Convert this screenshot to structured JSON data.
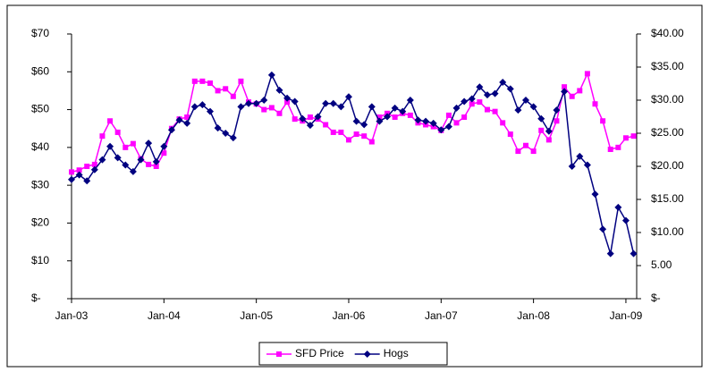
{
  "chart_data": {
    "type": "line",
    "categories": [
      "Jan-03",
      null,
      null,
      null,
      null,
      null,
      null,
      null,
      null,
      null,
      null,
      null,
      "Jan-04",
      null,
      null,
      null,
      null,
      null,
      null,
      null,
      null,
      null,
      null,
      null,
      "Jan-05",
      null,
      null,
      null,
      null,
      null,
      null,
      null,
      null,
      null,
      null,
      null,
      "Jan-06",
      null,
      null,
      null,
      null,
      null,
      null,
      null,
      null,
      null,
      null,
      null,
      "Jan-07",
      null,
      null,
      null,
      null,
      null,
      null,
      null,
      null,
      null,
      null,
      null,
      "Jan-08",
      null,
      null,
      null,
      null,
      null,
      null,
      null,
      null,
      null,
      null,
      null,
      "Jan-09",
      null
    ],
    "series": [
      {
        "name": "SFD Price",
        "color": "#ff00ff",
        "marker": "square",
        "values": [
          33.5,
          34,
          35,
          35.5,
          43,
          47,
          44,
          40,
          41,
          37,
          35.5,
          35,
          38.5,
          45,
          47.5,
          48,
          57.5,
          57.5,
          57,
          55,
          55.5,
          53.5,
          57.5,
          52,
          51.5,
          50,
          50.5,
          49,
          52,
          47.5,
          47,
          48,
          47.5,
          46,
          44,
          44,
          42,
          43.5,
          43,
          41.5,
          48,
          49,
          48,
          49,
          48.5,
          46.5,
          46,
          45.5,
          44.5,
          48.5,
          46.5,
          48,
          51.5,
          52,
          50,
          49.5,
          46.5,
          43.5,
          39,
          40.5,
          39,
          44.5,
          42,
          47,
          56,
          53.5,
          55,
          59.5,
          51.5,
          47,
          39.5,
          40,
          42.5,
          43
        ]
      },
      {
        "name": "Hogs",
        "color": "#000080",
        "marker": "diamond",
        "axis": "y2",
        "values": [
          18,
          18.7,
          17.8,
          19.5,
          21,
          23,
          21.3,
          20.2,
          19.2,
          21,
          23.5,
          20.7,
          23,
          25.5,
          27,
          26.5,
          29,
          29.3,
          28.3,
          25.8,
          25,
          24.3,
          29,
          29.5,
          29.5,
          30,
          33.8,
          31.5,
          30.3,
          29.8,
          27.2,
          26.2,
          27.5,
          29.5,
          29.5,
          29,
          30.5,
          26.8,
          26.3,
          29,
          26.8,
          27.5,
          28.8,
          28.3,
          30,
          27,
          26.8,
          26.5,
          25.5,
          26,
          28.8,
          29.8,
          30.2,
          32,
          30.8,
          31,
          32.7,
          31.7,
          28.5,
          30,
          29,
          27.2,
          25.3,
          28.5,
          31.3,
          20,
          21.5,
          20.2,
          15.8,
          10.5,
          6.8,
          13.8,
          11.8,
          6.8
        ]
      }
    ],
    "ylim": [
      0,
      70
    ],
    "yticks": [
      {
        "value": 0,
        "label": "$-"
      },
      {
        "value": 10,
        "label": "$10"
      },
      {
        "value": 20,
        "label": "$20"
      },
      {
        "value": 30,
        "label": "$30"
      },
      {
        "value": 40,
        "label": "$40"
      },
      {
        "value": 50,
        "label": "$50"
      },
      {
        "value": 60,
        "label": "$60"
      },
      {
        "value": 70,
        "label": "$70"
      }
    ],
    "y2lim": [
      0,
      40
    ],
    "y2ticks": [
      {
        "value": 0,
        "label": "$-"
      },
      {
        "value": 5,
        "label": "5.00"
      },
      {
        "value": 10,
        "label": "$10.00"
      },
      {
        "value": 15,
        "label": "$15.00"
      },
      {
        "value": 20,
        "label": "$20.00"
      },
      {
        "value": 25,
        "label": "$25.00"
      },
      {
        "value": 30,
        "label": "$30.00"
      },
      {
        "value": 35,
        "label": "$35.00"
      },
      {
        "value": 40,
        "label": "$40.00"
      }
    ],
    "grid": false,
    "legend": "bottom"
  }
}
